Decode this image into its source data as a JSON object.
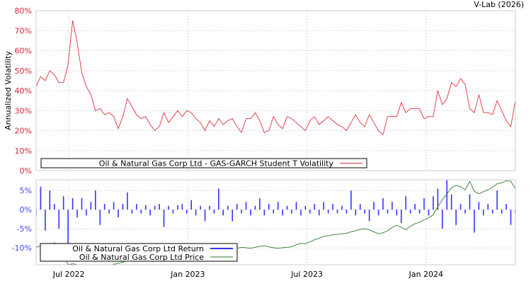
{
  "watermark": "V-Lab (2026)",
  "colors": {
    "volatility": "#e0303c",
    "vol_ticks": "#d9232f",
    "return": "#3333ff",
    "return_ticks": "#4444ff",
    "price": "#2e7d2e",
    "grid": "#bbbbbb",
    "frame": "#cccccc"
  },
  "chart_data": [
    {
      "type": "line",
      "title": "",
      "ylabel": "Annualized Volatility",
      "xlabel": "",
      "x_unit": "decimal year",
      "x_start": 2022.363,
      "x_step": 0.01916,
      "xlim": [
        2022.363,
        2024.375
      ],
      "ylim": [
        0,
        80
      ],
      "yticks": [
        0,
        10,
        20,
        30,
        40,
        50,
        60,
        70,
        80
      ],
      "ytick_labels": [
        "0%",
        "10%",
        "20%",
        "30%",
        "40%",
        "50%",
        "60%",
        "70%",
        "80%"
      ],
      "xticks": [
        2022.5,
        2023.0,
        2023.5,
        2024.0
      ],
      "grid": true,
      "legend": {
        "placement": "bottom-left",
        "entries": [
          "Oil & Natural Gas Corp Ltd - GAS-GARCH Student T Volatility"
        ]
      },
      "series": [
        {
          "name": "Oil & Natural Gas Corp Ltd - GAS-GARCH Student T Volatility",
          "unit": "%",
          "values": [
            42,
            47,
            45,
            50,
            48,
            44,
            44,
            53,
            75,
            64,
            49,
            42,
            38,
            30,
            31,
            28,
            29,
            27,
            21,
            27,
            36,
            32,
            28,
            26,
            27,
            23,
            20,
            22,
            29,
            24,
            27,
            30,
            27,
            30,
            29,
            26,
            24,
            20,
            25,
            22,
            26,
            23,
            25,
            26,
            22,
            19,
            26,
            26,
            29,
            25,
            19,
            20,
            27,
            23,
            21,
            27,
            26,
            24,
            22,
            20,
            25,
            27,
            23,
            25,
            27,
            25,
            23,
            22,
            20,
            24,
            28,
            24,
            22,
            28,
            24,
            20,
            18,
            27,
            27,
            27,
            34,
            29,
            31,
            31,
            31,
            26,
            27,
            27,
            40,
            33,
            36,
            44,
            42,
            46,
            43,
            31,
            29,
            38,
            29,
            29,
            28,
            35,
            30,
            25,
            22,
            35
          ]
        }
      ]
    },
    {
      "type": "bar",
      "title": "",
      "ylabel": "",
      "xlabel": "",
      "x_unit": "decimal year",
      "x_start": 2022.363,
      "x_step": 0.01916,
      "xlim": [
        2022.363,
        2024.375
      ],
      "ylim": [
        -14.4,
        7.8
      ],
      "yticks": [
        5,
        0,
        -5,
        -10
      ],
      "ytick_labels": [
        "5%",
        "0%",
        "-5%",
        "-10%"
      ],
      "xticks": [
        2022.5,
        2023.0,
        2023.5,
        2024.0
      ],
      "xtick_labels": [
        "Jul 2022",
        "Jan 2023",
        "Jul 2023",
        "Jan 2024"
      ],
      "grid": true,
      "legend": {
        "placement": "bottom-left",
        "entries": [
          "Oil & Natural Gas Corp Ltd Return",
          "Oil & Natural Gas Corp Ltd Price"
        ]
      },
      "series": [
        {
          "name": "Oil & Natural Gas Corp Ltd Return",
          "unit": "%",
          "values": [
            -1.5,
            6,
            -5.5,
            5,
            1.5,
            -5,
            3.5,
            -13,
            3,
            -2,
            3,
            -1.5,
            2,
            5,
            -4,
            1.5,
            -1,
            2,
            -2,
            1.5,
            4.5,
            -1,
            1.5,
            -1,
            1.2,
            -1.5,
            1,
            1.5,
            -4.5,
            1,
            -1,
            1.2,
            1.5,
            -1,
            2.5,
            -1.5,
            1,
            -3,
            1,
            -1,
            5.5,
            -1.5,
            1,
            -3,
            1.5,
            -1,
            2,
            -1.5,
            1,
            3,
            -1.5,
            1.5,
            -1,
            2,
            -1.5,
            1,
            -1,
            2,
            -1.5,
            1,
            -1,
            1.5,
            -1.5,
            2,
            -1,
            1.5,
            -1,
            1,
            -1,
            5,
            -1.5,
            1.5,
            -1,
            -3,
            2,
            -1.5,
            3,
            -1,
            2,
            -1.5,
            -3.5,
            3.5,
            -1,
            1.5,
            -1,
            3,
            -1.5,
            3.5,
            5.5,
            -5,
            8,
            4,
            -4,
            1.5,
            -1,
            4,
            -6,
            2,
            -1.5,
            1.5,
            -1,
            5,
            -1,
            1.5,
            -4,
            -1
          ]
        },
        {
          "name": "Oil & Natural Gas Corp Ltd Price",
          "type": "line",
          "secondary_ylim": [
            130,
            300
          ],
          "values": [
            165,
            168,
            163,
            168,
            174,
            168,
            150,
            130,
            132,
            130,
            128,
            127,
            126,
            128,
            130,
            129,
            128,
            131,
            133,
            135,
            140,
            143,
            146,
            149,
            152,
            154,
            156,
            158,
            159,
            160,
            160,
            161,
            160,
            162,
            163,
            162,
            163,
            164,
            163,
            162,
            164,
            166,
            165,
            164,
            163,
            165,
            164,
            163,
            165,
            167,
            168,
            166,
            164,
            163,
            164,
            165,
            166,
            170,
            173,
            172,
            176,
            180,
            183,
            187,
            188,
            190,
            191,
            192,
            193,
            196,
            198,
            201,
            202,
            200,
            196,
            192,
            194,
            198,
            205,
            209,
            205,
            200,
            207,
            212,
            215,
            220,
            224,
            230,
            246,
            260,
            272,
            284,
            289,
            286,
            280,
            297,
            277,
            272,
            276,
            280,
            285,
            292,
            294,
            298,
            297,
            282
          ]
        }
      ]
    }
  ]
}
